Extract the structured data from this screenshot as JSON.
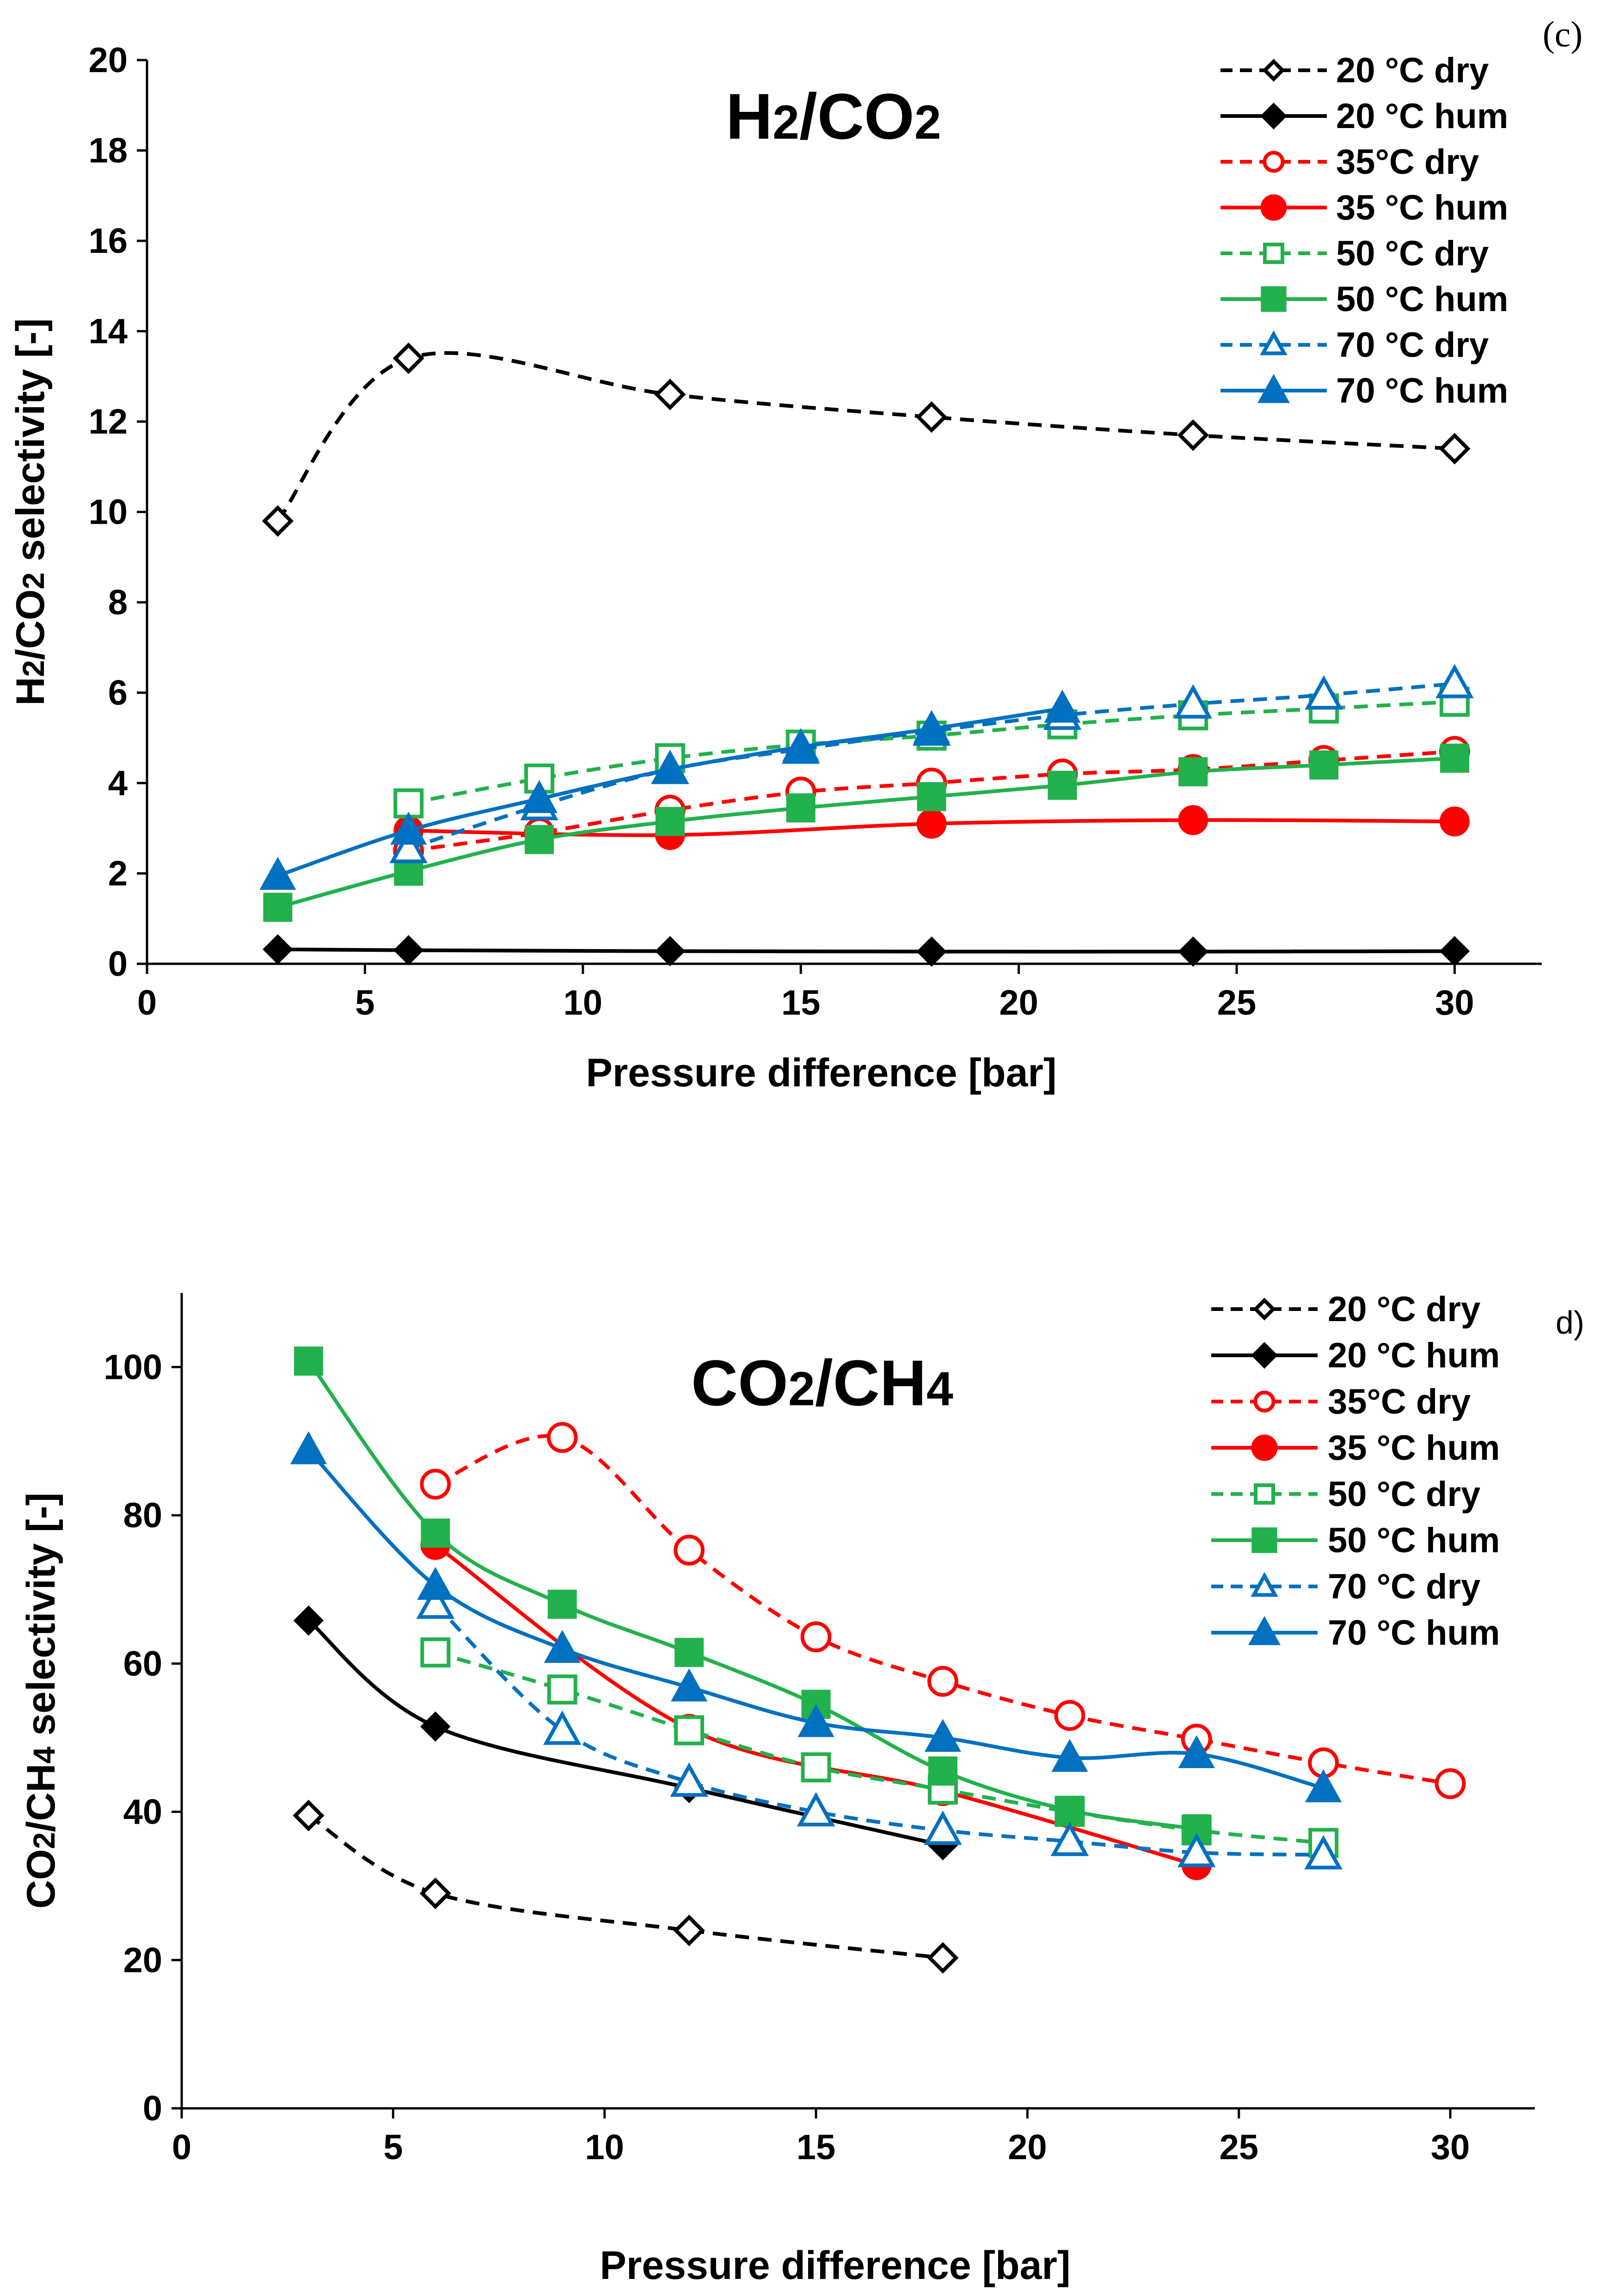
{
  "chart_data": [
    {
      "type": "line",
      "panel_label": "(c)",
      "title_parts": [
        {
          "text": "H",
          "sub": false
        },
        {
          "text": "2",
          "sub": true
        },
        {
          "text": "/CO",
          "sub": false
        },
        {
          "text": "2",
          "sub": true
        }
      ],
      "title": "H2/CO2",
      "xlabel": "Pressure difference [bar]",
      "ylabel_parts": [
        {
          "text": "H",
          "sub": false
        },
        {
          "text": "2",
          "sub": true
        },
        {
          "text": "/CO",
          "sub": false
        },
        {
          "text": "2",
          "sub": true
        },
        {
          "text": " selectivity [-]",
          "sub": false
        }
      ],
      "ylabel": "H2/CO2 selectivity [-]",
      "xlim": [
        0,
        32
      ],
      "ylim": [
        0,
        20
      ],
      "xticks": [
        "0",
        "5",
        "10",
        "15",
        "20",
        "25",
        "30"
      ],
      "yticks": [
        "0",
        "2",
        "4",
        "6",
        "8",
        "10",
        "12",
        "14",
        "16",
        "18",
        "20"
      ],
      "legend_position": "top-right",
      "series": [
        {
          "name": "20 °C dry",
          "color": "#000000",
          "dash": "dashed",
          "marker": "diamond",
          "filled": false,
          "x": [
            3,
            6,
            12,
            18,
            24,
            30
          ],
          "y": [
            9.8,
            13.4,
            12.6,
            12.1,
            11.7,
            11.4
          ]
        },
        {
          "name": "20 °C hum",
          "color": "#000000",
          "dash": "solid",
          "marker": "diamond",
          "filled": true,
          "x": [
            3,
            6,
            12,
            18,
            24,
            30
          ],
          "y": [
            0.32,
            0.3,
            0.28,
            0.27,
            0.27,
            0.28
          ]
        },
        {
          "name": "35°C dry",
          "color": "#ff0000",
          "dash": "dashed",
          "marker": "circle",
          "filled": false,
          "x": [
            6,
            9,
            12,
            15,
            18,
            21,
            24,
            27,
            30
          ],
          "y": [
            2.5,
            2.9,
            3.4,
            3.8,
            4.0,
            4.2,
            4.3,
            4.5,
            4.7
          ]
        },
        {
          "name": "35 °C hum",
          "color": "#ff0000",
          "dash": "solid",
          "marker": "circle",
          "filled": true,
          "x": [
            6,
            12,
            18,
            24,
            30
          ],
          "y": [
            2.95,
            2.85,
            3.1,
            3.18,
            3.15
          ]
        },
        {
          "name": "50 °C dry",
          "color": "#22b14c",
          "dash": "dashed",
          "marker": "square",
          "filled": false,
          "x": [
            6,
            9,
            12,
            15,
            18,
            21,
            24,
            27,
            30
          ],
          "y": [
            3.55,
            4.1,
            4.55,
            4.85,
            5.05,
            5.3,
            5.5,
            5.65,
            5.8
          ]
        },
        {
          "name": "50 °C hum",
          "color": "#22b14c",
          "dash": "solid",
          "marker": "square",
          "filled": true,
          "x": [
            3,
            6,
            9,
            12,
            15,
            18,
            21,
            24,
            27,
            30
          ],
          "y": [
            1.25,
            2.05,
            2.75,
            3.15,
            3.45,
            3.7,
            3.95,
            4.25,
            4.4,
            4.55
          ]
        },
        {
          "name": "70 °C dry",
          "color": "#0070c0",
          "dash": "dashed",
          "marker": "triangle",
          "filled": false,
          "x": [
            6,
            9,
            12,
            15,
            18,
            21,
            24,
            27,
            30
          ],
          "y": [
            2.55,
            3.5,
            4.3,
            4.75,
            5.15,
            5.5,
            5.75,
            5.95,
            6.2
          ]
        },
        {
          "name": "70 °C hum",
          "color": "#0070c0",
          "dash": "solid",
          "marker": "triangle",
          "filled": true,
          "x": [
            3,
            6,
            9,
            12,
            15,
            18,
            21
          ],
          "y": [
            1.95,
            2.95,
            3.65,
            4.3,
            4.8,
            5.2,
            5.65
          ]
        }
      ]
    },
    {
      "type": "line",
      "panel_label": "d)",
      "title_parts": [
        {
          "text": "CO",
          "sub": false
        },
        {
          "text": "2",
          "sub": true
        },
        {
          "text": "/CH",
          "sub": false
        },
        {
          "text": "4",
          "sub": true
        }
      ],
      "title": "CO2/CH4",
      "xlabel": "Pressure difference [bar]",
      "ylabel_parts": [
        {
          "text": "CO",
          "sub": false
        },
        {
          "text": "2",
          "sub": true
        },
        {
          "text": "/CH",
          "sub": false
        },
        {
          "text": "4",
          "sub": true
        },
        {
          "text": " selectivity [-]",
          "sub": false
        }
      ],
      "ylabel": "CO2/CH4 selectivity [-]",
      "xlim": [
        0,
        32
      ],
      "ylim": [
        0,
        110
      ],
      "xticks": [
        "0",
        "5",
        "10",
        "15",
        "20",
        "25",
        "30"
      ],
      "yticks": [
        "0",
        "20",
        "40",
        "60",
        "80",
        "100"
      ],
      "legend_position": "top-right",
      "series": [
        {
          "name": "20 °C dry",
          "color": "#000000",
          "dash": "dashed",
          "marker": "diamond",
          "filled": false,
          "x": [
            3,
            6,
            12,
            18
          ],
          "y": [
            39.5,
            29.0,
            24.0,
            20.3
          ]
        },
        {
          "name": "20 °C hum",
          "color": "#000000",
          "dash": "solid",
          "marker": "diamond",
          "filled": true,
          "x": [
            3,
            6,
            12,
            18
          ],
          "y": [
            65.8,
            51.5,
            43.2,
            35.5
          ]
        },
        {
          "name": "35°C dry",
          "color": "#ff0000",
          "dash": "dashed",
          "marker": "circle",
          "filled": false,
          "x": [
            6,
            9,
            12,
            15,
            18,
            21,
            24,
            27,
            30
          ],
          "y": [
            84.2,
            90.5,
            75.3,
            63.6,
            57.6,
            53.0,
            49.8,
            46.6,
            43.8
          ]
        },
        {
          "name": "35 °C hum",
          "color": "#ff0000",
          "dash": "solid",
          "marker": "circle",
          "filled": true,
          "x": [
            6,
            12,
            18,
            24
          ],
          "y": [
            76.0,
            51.2,
            42.8,
            32.8
          ]
        },
        {
          "name": "50 °C dry",
          "color": "#22b14c",
          "dash": "dashed",
          "marker": "square",
          "filled": false,
          "x": [
            6,
            9,
            12,
            15,
            18,
            21,
            24,
            27
          ],
          "y": [
            61.5,
            56.5,
            51.0,
            46.0,
            43.0,
            40.0,
            37.5,
            35.8
          ]
        },
        {
          "name": "50 °C hum",
          "color": "#22b14c",
          "dash": "solid",
          "marker": "square",
          "filled": true,
          "x": [
            3,
            6,
            9,
            12,
            15,
            18,
            21,
            24
          ],
          "y": [
            100.8,
            77.6,
            68.0,
            61.5,
            54.5,
            45.5,
            40.2,
            37.7
          ]
        },
        {
          "name": "70 °C dry",
          "color": "#0070c0",
          "dash": "dashed",
          "marker": "triangle",
          "filled": false,
          "x": [
            6,
            9,
            12,
            15,
            18,
            21,
            24,
            27
          ],
          "y": [
            68.0,
            51.0,
            44.0,
            40.0,
            37.5,
            36.0,
            34.5,
            34.2
          ]
        },
        {
          "name": "70 °C hum",
          "color": "#0070c0",
          "dash": "solid",
          "marker": "triangle",
          "filled": true,
          "x": [
            3,
            6,
            9,
            12,
            15,
            18,
            21,
            24,
            27
          ],
          "y": [
            88.8,
            70.5,
            62.0,
            56.8,
            52.0,
            50.0,
            47.3,
            47.8,
            43.2
          ]
        }
      ]
    }
  ]
}
